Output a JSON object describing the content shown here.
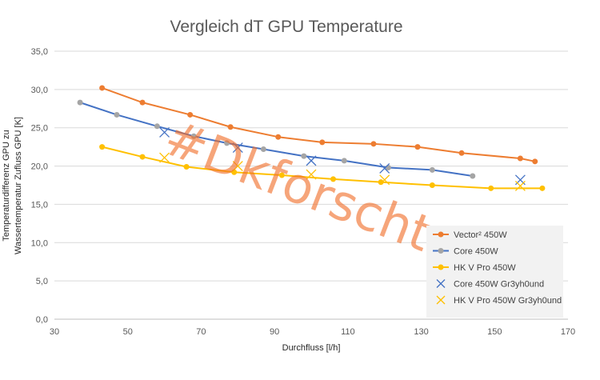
{
  "chart_data": {
    "type": "line",
    "title": "Vergleich dT GPU Temperature",
    "xlabel": "Durchfluss [l/h]",
    "ylabel_lines": [
      "Temperaturdifferenz GPU zu",
      "Wassertemperatur Zufluss GPU  [K]"
    ],
    "xlim": [
      30,
      170
    ],
    "ylim": [
      0,
      35
    ],
    "x_ticks": [
      "30",
      "50",
      "70",
      "90",
      "110",
      "130",
      "150",
      "170"
    ],
    "y_ticks": [
      "0,0",
      "5,0",
      "10,0",
      "15,0",
      "20,0",
      "25,0",
      "30,0",
      "35,0"
    ],
    "grid": "horizontal",
    "legend_position": "right-bottom",
    "watermark": "#Dkforscht",
    "series": [
      {
        "name": "Vector² 450W",
        "style": "line-dot",
        "color": "#ED7D31",
        "points": [
          [
            43,
            30.2
          ],
          [
            54,
            28.3
          ],
          [
            67,
            26.7
          ],
          [
            78,
            25.1
          ],
          [
            91,
            23.8
          ],
          [
            103,
            23.1
          ],
          [
            117,
            22.9
          ],
          [
            129,
            22.5
          ],
          [
            141,
            21.7
          ],
          [
            157,
            21.0
          ],
          [
            161,
            20.6
          ]
        ]
      },
      {
        "name": "Core 450W",
        "style": "line-dot",
        "color": "#4472C4",
        "marker_color": "#A5A5A5",
        "points": [
          [
            37,
            28.3
          ],
          [
            47,
            26.7
          ],
          [
            58,
            25.2
          ],
          [
            68,
            23.9
          ],
          [
            77,
            23.0
          ],
          [
            87,
            22.2
          ],
          [
            98,
            21.3
          ],
          [
            109,
            20.7
          ],
          [
            121,
            19.8
          ],
          [
            133,
            19.5
          ],
          [
            144,
            18.7
          ]
        ]
      },
      {
        "name": "HK V Pro 450W",
        "style": "line-dot",
        "color": "#FFC000",
        "points": [
          [
            43,
            22.5
          ],
          [
            54,
            21.2
          ],
          [
            66,
            19.9
          ],
          [
            79,
            19.2
          ],
          [
            92,
            18.8
          ],
          [
            106,
            18.3
          ],
          [
            119,
            17.9
          ],
          [
            133,
            17.5
          ],
          [
            149,
            17.1
          ],
          [
            163,
            17.1
          ]
        ]
      },
      {
        "name": "Core 450W Gr3yh0und",
        "style": "x-marker",
        "color": "#4472C4",
        "points": [
          [
            60,
            24.4
          ],
          [
            80,
            22.4
          ],
          [
            100,
            20.7
          ],
          [
            120,
            19.7
          ],
          [
            157,
            18.2
          ]
        ]
      },
      {
        "name": "HK V Pro 450W Gr3yh0und",
        "style": "x-marker",
        "color": "#FFC000",
        "points": [
          [
            60,
            21.1
          ],
          [
            80,
            20.0
          ],
          [
            100,
            18.9
          ],
          [
            120,
            18.2
          ],
          [
            157,
            17.4
          ]
        ]
      }
    ]
  }
}
